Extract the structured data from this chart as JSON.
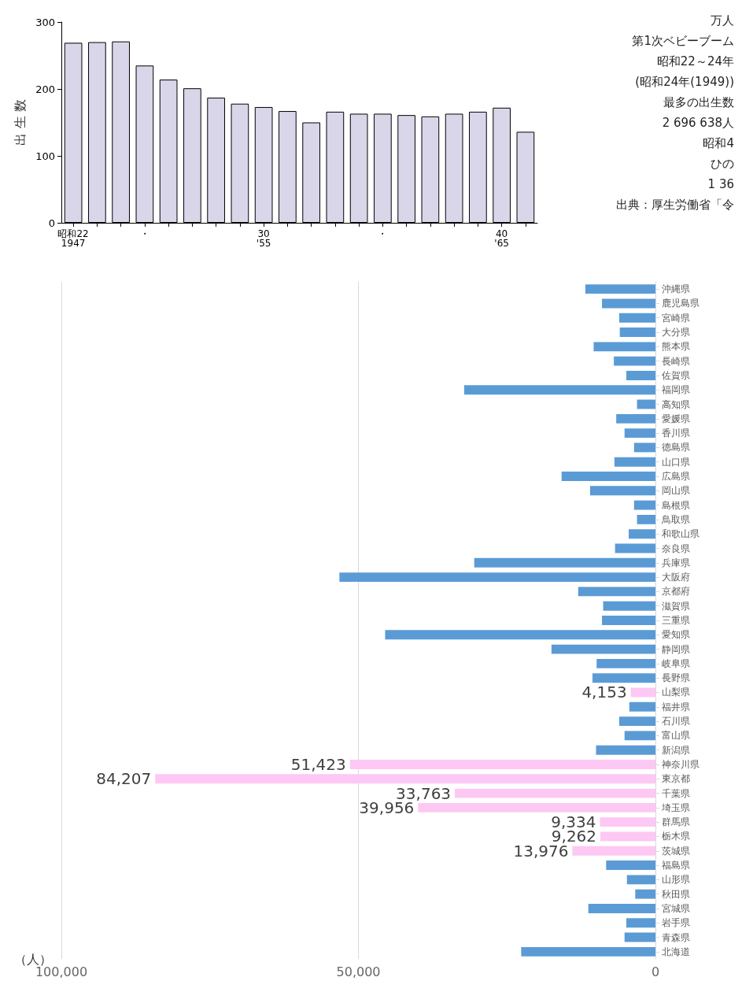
{
  "chart_data": [
    {
      "type": "bar",
      "ylabel": "出 生 数",
      "categories": [
        "昭和22\n1947",
        null,
        null,
        "・",
        null,
        null,
        null,
        null,
        "30\n'55",
        null,
        null,
        null,
        null,
        "・",
        null,
        null,
        null,
        null,
        "40\n'65",
        null
      ],
      "values": [
        269,
        270,
        271,
        235,
        214,
        201,
        187,
        178,
        173,
        167,
        150,
        166,
        163,
        163,
        161,
        159,
        163,
        166,
        172,
        136
      ],
      "color": "#d9d6e9",
      "ylim": [
        0,
        300
      ],
      "yticks": [
        0,
        100,
        200,
        300
      ],
      "grid": false,
      "annotations": [
        "万人",
        "第1次ベビーブーム",
        "昭和22～24年",
        "(昭和24年(1949))",
        "最多の出生数",
        "2 696 638人",
        "昭和4",
        "ひの",
        "1 36",
        "出典：厚生労働省「令"
      ]
    },
    {
      "type": "bar",
      "orientation": "horizontal",
      "xlabel": "（人）",
      "categories": [
        "沖縄県",
        "鹿児島県",
        "宮崎県",
        "大分県",
        "熊本県",
        "長崎県",
        "佐賀県",
        "福岡県",
        "高知県",
        "愛媛県",
        "香川県",
        "徳島県",
        "山口県",
        "広島県",
        "岡山県",
        "島根県",
        "鳥取県",
        "和歌山県",
        "奈良県",
        "兵庫県",
        "大阪府",
        "京都府",
        "滋賀県",
        "三重県",
        "愛知県",
        "静岡県",
        "岐阜県",
        "長野県",
        "山梨県",
        "福井県",
        "石川県",
        "富山県",
        "新潟県",
        "神奈川県",
        "東京都",
        "千葉県",
        "埼玉県",
        "群馬県",
        "栃木県",
        "茨城県",
        "福島県",
        "山形県",
        "秋田県",
        "宮城県",
        "岩手県",
        "青森県",
        "北海道"
      ],
      "values": [
        11800,
        9000,
        6100,
        6000,
        10400,
        7000,
        4900,
        32200,
        3100,
        6600,
        5200,
        3600,
        6900,
        15800,
        11000,
        3600,
        3100,
        4500,
        6800,
        30500,
        53200,
        13000,
        8800,
        9000,
        45500,
        17500,
        9900,
        10600,
        4153,
        4400,
        6100,
        5200,
        10000,
        51423,
        84207,
        33763,
        39956,
        9334,
        9262,
        13976,
        8300,
        4800,
        3400,
        11300,
        4900,
        5200,
        22600
      ],
      "colors": [
        "#5b9bd5",
        "#5b9bd5",
        "#5b9bd5",
        "#5b9bd5",
        "#5b9bd5",
        "#5b9bd5",
        "#5b9bd5",
        "#5b9bd5",
        "#5b9bd5",
        "#5b9bd5",
        "#5b9bd5",
        "#5b9bd5",
        "#5b9bd5",
        "#5b9bd5",
        "#5b9bd5",
        "#5b9bd5",
        "#5b9bd5",
        "#5b9bd5",
        "#5b9bd5",
        "#5b9bd5",
        "#5b9bd5",
        "#5b9bd5",
        "#5b9bd5",
        "#5b9bd5",
        "#5b9bd5",
        "#5b9bd5",
        "#5b9bd5",
        "#5b9bd5",
        "#fdc8f3",
        "#5b9bd5",
        "#5b9bd5",
        "#5b9bd5",
        "#5b9bd5",
        "#fdc8f3",
        "#fdc8f3",
        "#fdc8f3",
        "#fdc8f3",
        "#fdc8f3",
        "#fdc8f3",
        "#fdc8f3",
        "#5b9bd5",
        "#5b9bd5",
        "#5b9bd5",
        "#5b9bd5",
        "#5b9bd5",
        "#5b9bd5",
        "#5b9bd5"
      ],
      "value_labels": [
        null,
        null,
        null,
        null,
        null,
        null,
        null,
        null,
        null,
        null,
        null,
        null,
        null,
        null,
        null,
        null,
        null,
        null,
        null,
        null,
        null,
        null,
        null,
        null,
        null,
        null,
        null,
        null,
        "4,153",
        null,
        null,
        null,
        null,
        "51,423",
        "84,207",
        "33,763",
        "39,956",
        "9,334",
        "9,262",
        "13,976",
        null,
        null,
        null,
        null,
        null,
        null,
        null
      ],
      "xlim": [
        100000,
        0
      ],
      "xticks": [
        {
          "value": 0,
          "label": "0"
        },
        {
          "value": 50000,
          "label": "50,000"
        },
        {
          "value": 100000,
          "label": "100,000"
        }
      ],
      "grid": "x"
    }
  ]
}
